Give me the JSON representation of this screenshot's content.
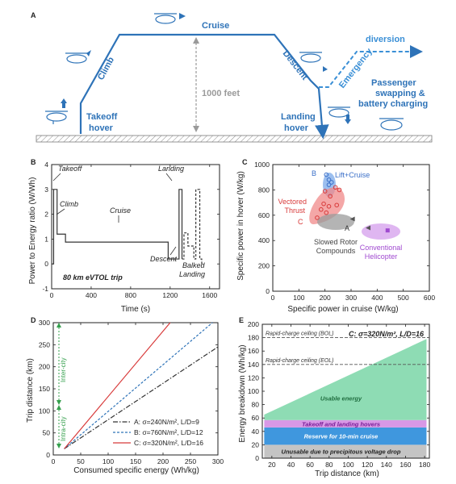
{
  "panel_letters": {
    "a": "A",
    "b": "B",
    "c": "C",
    "d": "D",
    "e": "E"
  },
  "panel_a": {
    "labels": {
      "cruise": "Cruise",
      "climb": "Climb",
      "descent": "Descent",
      "takeoff_1": "Takeoff",
      "takeoff_2": "hover",
      "landing_1": "Landing",
      "landing_2": "hover",
      "emergency": "Emergency",
      "diversion": "diversion",
      "altitude": "1000 feet",
      "passenger_1": "Passenger",
      "passenger_2": "swapping &",
      "passenger_3": "battery charging"
    },
    "colors": {
      "flight": "#2e73b8",
      "ground": "#9a9a9a"
    }
  },
  "chart_data": [
    {
      "panel": "B",
      "type": "line",
      "xlabel": "Time (s)",
      "ylabel": "Power to Energy ratio (W/Wh)",
      "xlim": [
        0,
        1700
      ],
      "ylim": [
        -1,
        4
      ],
      "xticks": [
        0,
        400,
        800,
        1200,
        1600
      ],
      "yticks": [
        -1,
        0,
        1,
        2,
        3,
        4
      ],
      "series": [
        {
          "style": "solid",
          "x": [
            0,
            20,
            20,
            55,
            55,
            140,
            140,
            1180,
            1180,
            1290,
            1290,
            1320,
            1320
          ],
          "y": [
            0,
            0,
            3.0,
            3.0,
            1.2,
            1.2,
            0.88,
            0.88,
            0.2,
            0.2,
            3.0,
            3.0,
            0.2
          ]
        },
        {
          "style": "dashed",
          "x": [
            1320,
            1340,
            1340,
            1380,
            1380,
            1440,
            1440,
            1460,
            1460,
            1500,
            1500,
            1520,
            1520
          ],
          "y": [
            0.2,
            0.2,
            1.25,
            1.25,
            0.72,
            0.72,
            0.2,
            0.2,
            3.0,
            3.0,
            0.2,
            0.2,
            0
          ]
        }
      ],
      "annotations": [
        "Takeoff",
        "Climb",
        "Cruise",
        "Descent",
        "Landing",
        "Balked",
        "Landing"
      ],
      "caption": "80 km eVTOL trip"
    },
    {
      "panel": "C",
      "type": "scatter",
      "xlabel": "Specific power in cruise (W/kg)",
      "ylabel": "Specific power in hover (W/kg)",
      "xlim": [
        0,
        600
      ],
      "ylim": [
        0,
        1000
      ],
      "xticks": [
        0,
        100,
        200,
        300,
        400,
        500,
        600
      ],
      "yticks": [
        0,
        200,
        400,
        600,
        800,
        1000
      ],
      "groups": [
        {
          "name": "Lift+Cruise",
          "color": "#3a6fc8",
          "points": [
            [
              205,
              920
            ],
            [
              215,
              880
            ],
            [
              225,
              860
            ],
            [
              215,
              840
            ]
          ]
        },
        {
          "name": "Vectored Thrust",
          "color": "#d83a3a",
          "points": [
            [
              240,
              820
            ],
            [
              255,
              800
            ],
            [
              200,
              790
            ],
            [
              220,
              750
            ],
            [
              195,
              690
            ],
            [
              215,
              670
            ],
            [
              245,
              680
            ],
            [
              185,
              645
            ],
            [
              205,
              620
            ],
            [
              170,
              580
            ]
          ]
        },
        {
          "name": "Slowed Rotor Compounds",
          "color": "#555555",
          "points": [
            [
              305,
              570
            ],
            [
              365,
              500
            ]
          ]
        },
        {
          "name": "Conventional Helicopter",
          "color": "#a04ad0",
          "points": [
            [
              440,
              480
            ]
          ]
        }
      ],
      "point_labels": [
        "A",
        "B",
        "C"
      ]
    },
    {
      "panel": "D",
      "type": "line",
      "xlabel": "Consumed specific energy (Wh/kg)",
      "ylabel": "Trip distance (km)",
      "xlim": [
        0,
        300
      ],
      "ylim": [
        0,
        300
      ],
      "xticks": [
        0,
        50,
        100,
        150,
        200,
        250,
        300
      ],
      "yticks": [
        0,
        50,
        100,
        150,
        200,
        250,
        300
      ],
      "series": [
        {
          "name": "A: σ=240N/m², L/D=9",
          "color": "#333333",
          "style": "dashdot",
          "x": [
            20,
            300
          ],
          "y": [
            14,
            245
          ]
        },
        {
          "name": "B: σ=760N/m², L/D=12",
          "color": "#2e73b8",
          "style": "dashed",
          "x": [
            20,
            290
          ],
          "y": [
            14,
            300
          ]
        },
        {
          "name": "C: σ=320N/m², L/D=16",
          "color": "#d83a3a",
          "style": "solid",
          "x": [
            20,
            213
          ],
          "y": [
            14,
            300
          ]
        }
      ],
      "range_labels": [
        "Intra-city",
        "Inter-city"
      ]
    },
    {
      "panel": "E",
      "type": "area",
      "xlabel": "Trip distance (km)",
      "ylabel": "Energy breakdown (Wh/kg)",
      "xlim": [
        10,
        185
      ],
      "ylim": [
        0,
        200
      ],
      "xticks": [
        20,
        40,
        60,
        80,
        100,
        120,
        140,
        160,
        180
      ],
      "yticks": [
        0,
        20,
        40,
        60,
        80,
        100,
        120,
        140,
        160,
        180,
        200
      ],
      "legend_title": "C: σ=320N/m², L/D=16",
      "layers": [
        {
          "name": "Unusable due to precipitous voltage drop",
          "color": "#c4c4c4",
          "x": [
            12,
            182
          ],
          "lower": [
            0,
            0
          ],
          "upper": [
            20,
            20
          ]
        },
        {
          "name": "Reserve for 10-min cruise",
          "color": "#3f97de",
          "x": [
            12,
            182
          ],
          "lower": [
            20,
            20
          ],
          "upper": [
            46,
            46
          ]
        },
        {
          "name": "Takeoff and landing hovers",
          "color": "#d898e6",
          "x": [
            12,
            182
          ],
          "lower": [
            46,
            46
          ],
          "upper": [
            57,
            57
          ]
        },
        {
          "name": "Usable energy",
          "color": "#8edcb4",
          "x": [
            12,
            182
          ],
          "lower": [
            57,
            57
          ],
          "upper": [
            65,
            178
          ]
        }
      ],
      "reference_lines": [
        {
          "name": "Rapid-charge ceiling (BOL)",
          "y": 180
        },
        {
          "name": "Rapid-charge ceiling (EOL)",
          "y": 140
        }
      ]
    }
  ]
}
